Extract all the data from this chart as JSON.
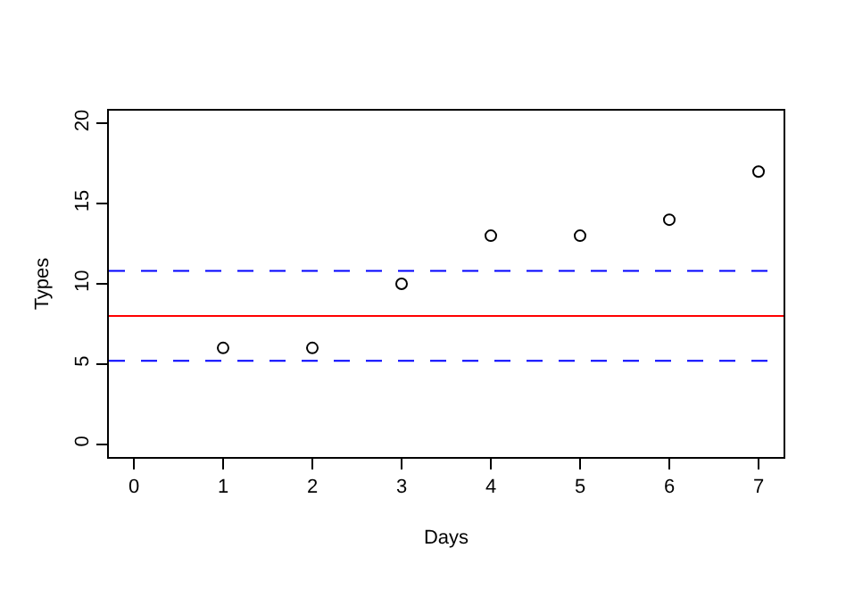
{
  "chart_data": {
    "type": "scatter",
    "xlabel": "Days",
    "ylabel": "Types",
    "x": [
      1,
      2,
      3,
      4,
      5,
      6,
      7
    ],
    "values": [
      6,
      6,
      10,
      13,
      13,
      14,
      17
    ],
    "color": "#000000",
    "marker": "circle",
    "xlim": [
      -0.28,
      7.28
    ],
    "xticks": [
      0,
      1,
      2,
      3,
      4,
      5,
      6,
      7
    ],
    "ylim": [
      -0.8,
      20.8
    ],
    "yticks": [
      0,
      5,
      10,
      15,
      20
    ],
    "ref_lines": [
      {
        "axis": "y",
        "value": 8,
        "color": "#ff0000",
        "line_style": "solid"
      },
      {
        "axis": "y",
        "value": 10.8,
        "color": "#0000ff",
        "line_style": "dashed"
      },
      {
        "axis": "y",
        "value": 5.2,
        "color": "#0000ff",
        "line_style": "dashed"
      }
    ]
  }
}
